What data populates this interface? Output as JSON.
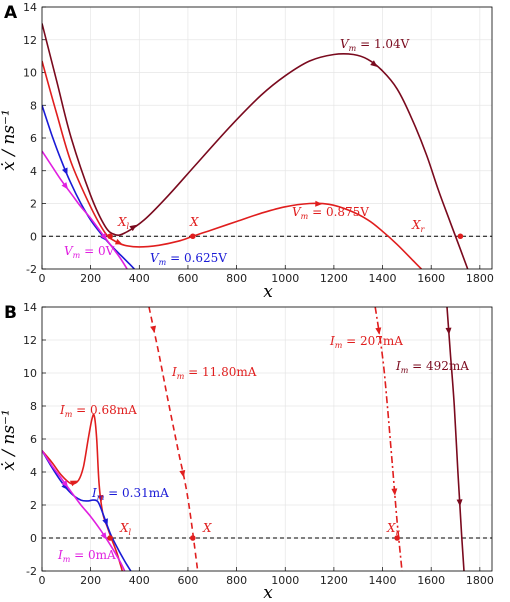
{
  "colors": {
    "dark_red": "#7a0a1e",
    "red": "#e01e1e",
    "blue": "#1a1ad6",
    "magenta": "#e020e0",
    "axis": "#000000"
  },
  "chart_data": [
    {
      "panel": "A",
      "type": "line",
      "xlabel": "x",
      "ylabel": "ẋ / ns⁻¹",
      "xlim": [
        0,
        1850
      ],
      "ylim": [
        -2,
        14
      ],
      "xticks": [
        "0",
        "200",
        "400",
        "600",
        "800",
        "1000",
        "1200",
        "1400",
        "1600",
        "1800"
      ],
      "yticks": [
        "-2",
        "0",
        "2",
        "4",
        "6",
        "8",
        "10",
        "12",
        "14"
      ],
      "grid": true,
      "hline_y": 0,
      "series": [
        {
          "name": "V_m = 1.04V",
          "label": "V_m = 1.04V",
          "color": "dark_red",
          "x": [
            0,
            60,
            120,
            200,
            260,
            300,
            340,
            420,
            520,
            640,
            780,
            900,
            1000,
            1100,
            1200,
            1280,
            1340,
            1400,
            1460,
            1520,
            1580,
            1630,
            1680,
            1720,
            1750
          ],
          "y": [
            13.0,
            9.5,
            6.0,
            2.5,
            0.6,
            0.1,
            0.2,
            1.0,
            2.5,
            4.5,
            6.8,
            8.6,
            9.8,
            10.7,
            11.1,
            11.1,
            10.8,
            10.1,
            9.0,
            7.2,
            5.0,
            2.8,
            0.8,
            -0.8,
            -2.0
          ]
        },
        {
          "name": "V_m = 0.875V",
          "label": "V_m = 0.875V",
          "color": "red",
          "x": [
            0,
            60,
            120,
            200,
            260,
            300,
            340,
            400,
            480,
            560,
            620,
            700,
            800,
            900,
            1000,
            1100,
            1180,
            1260,
            1340,
            1400,
            1460,
            1520,
            1560
          ],
          "y": [
            10.7,
            7.5,
            4.5,
            1.8,
            0.2,
            -0.3,
            -0.55,
            -0.65,
            -0.55,
            -0.3,
            0.0,
            0.4,
            0.9,
            1.4,
            1.8,
            2.0,
            1.95,
            1.6,
            1.0,
            0.3,
            -0.5,
            -1.4,
            -2.0
          ]
        },
        {
          "name": "V_m = 0.625V",
          "label": "V_m = 0.625V",
          "color": "blue",
          "x": [
            0,
            40,
            80,
            120,
            160,
            200,
            240,
            280,
            320,
            360,
            380
          ],
          "y": [
            8.0,
            6.2,
            4.6,
            3.2,
            2.0,
            1.0,
            0.2,
            -0.5,
            -1.1,
            -1.7,
            -2.0
          ]
        },
        {
          "name": "V_m = 0V",
          "label": "V_m = 0V",
          "color": "magenta",
          "x": [
            0,
            40,
            80,
            120,
            160,
            200,
            240,
            280,
            320,
            350
          ],
          "y": [
            5.2,
            4.3,
            3.4,
            2.6,
            1.8,
            1.1,
            0.3,
            -0.5,
            -1.3,
            -2.0
          ]
        }
      ],
      "points": [
        {
          "label": "X_l",
          "x": 280,
          "y": 0
        },
        {
          "label": "X",
          "x": 620,
          "y": 0
        },
        {
          "label": "X_r",
          "x": 1720,
          "y": 0
        }
      ]
    },
    {
      "panel": "B",
      "type": "line",
      "xlabel": "x",
      "ylabel": "ẋ / ns⁻¹",
      "xlim": [
        0,
        1850
      ],
      "ylim": [
        -2,
        14
      ],
      "xticks": [
        "0",
        "200",
        "400",
        "600",
        "800",
        "1000",
        "1200",
        "1400",
        "1600",
        "1800"
      ],
      "yticks": [
        "-2",
        "0",
        "2",
        "4",
        "6",
        "8",
        "10",
        "12",
        "14"
      ],
      "grid": true,
      "hline_y": 0,
      "series": [
        {
          "name": "I_m = 0.68mA",
          "label": "I_m = 0.68mA",
          "color": "red",
          "x": [
            0,
            40,
            80,
            120,
            150,
            170,
            190,
            205,
            215,
            225,
            235,
            250,
            270,
            290,
            310,
            330
          ],
          "y": [
            5.3,
            4.6,
            3.8,
            3.3,
            3.5,
            4.3,
            6.0,
            7.2,
            7.4,
            6.0,
            3.2,
            1.5,
            0.6,
            -0.2,
            -1.0,
            -2.0
          ]
        },
        {
          "name": "I_m = 0.31mA",
          "label": "I_m = 0.31mA",
          "color": "blue",
          "x": [
            0,
            40,
            80,
            120,
            160,
            190,
            210,
            230,
            250,
            280,
            310,
            340,
            365
          ],
          "y": [
            5.3,
            4.3,
            3.4,
            2.7,
            2.3,
            2.25,
            2.3,
            2.2,
            1.5,
            0.3,
            -0.6,
            -1.4,
            -2.0
          ]
        },
        {
          "name": "I_m = 0mA",
          "label": "I_m = 0mA",
          "color": "magenta",
          "x": [
            0,
            40,
            80,
            120,
            160,
            200,
            240,
            280,
            320,
            340
          ],
          "y": [
            5.3,
            4.4,
            3.6,
            2.8,
            2.0,
            1.3,
            0.5,
            -0.4,
            -1.4,
            -2.0
          ]
        },
        {
          "name": "I_m = 11.80mA",
          "label": "I_m = 11.80mA",
          "color": "red",
          "dash": "6,4",
          "x": [
            440,
            480,
            520,
            560,
            600,
            640
          ],
          "y": [
            14.0,
            11.2,
            8.2,
            5.3,
            2.4,
            -2.0
          ]
        },
        {
          "name": "I_m = 207mA",
          "label": "I_m = 207mA",
          "color": "red",
          "dash": "7,3,2,3",
          "x": [
            1370,
            1400,
            1420,
            1440,
            1460,
            1480
          ],
          "y": [
            14.0,
            11.0,
            8.0,
            4.5,
            1.0,
            -2.0
          ]
        },
        {
          "name": "I_m = 492mA",
          "label": "I_m = 492mA",
          "color": "dark_red",
          "x": [
            1665,
            1680,
            1695,
            1710,
            1725,
            1735
          ],
          "y": [
            14.0,
            11.0,
            8.0,
            4.0,
            0.2,
            -2.0
          ]
        }
      ],
      "points": [
        {
          "label": "X_l",
          "x": 280,
          "y": 0
        },
        {
          "label": "X",
          "x": 620,
          "y": 0
        },
        {
          "label": "X_r",
          "x": 1460,
          "y": 0
        }
      ]
    }
  ],
  "panelA": {
    "letter": "A",
    "xlabel": "x",
    "ylabel": "ẋ / ns⁻¹",
    "ann_vm104": "V",
    "ann_vm104_sub": "m",
    "ann_vm104_val": " = 1.04V",
    "ann_vm0875": "V",
    "ann_vm0875_sub": "m",
    "ann_vm0875_val": " = 0.875V",
    "ann_vm0625": "V",
    "ann_vm0625_sub": "m",
    "ann_vm0625_val": " = 0.625V",
    "ann_vm0": "V",
    "ann_vm0_sub": "m",
    "ann_vm0_val": " = 0V",
    "pt_xl": "X",
    "pt_xl_sub": "l",
    "pt_x": "X",
    "pt_xr": "X",
    "pt_xr_sub": "r"
  },
  "panelB": {
    "letter": "B",
    "xlabel": "x",
    "ylabel": "ẋ / ns⁻¹",
    "ann_im068": "I",
    "ann_im068_sub": "m",
    "ann_im068_val": " = 0.68mA",
    "ann_im031": "I",
    "ann_im031_sub": "m",
    "ann_im031_val": " = 0.31mA",
    "ann_im0": "I",
    "ann_im0_sub": "m",
    "ann_im0_val": " = 0mA",
    "ann_im1180": "I",
    "ann_im1180_sub": "m",
    "ann_im1180_val": " = 11.80mA",
    "ann_im207": "I",
    "ann_im207_sub": "m",
    "ann_im207_val": " = 207mA",
    "ann_im492": "I",
    "ann_im492_sub": "m",
    "ann_im492_val": " = 492mA",
    "pt_xl": "X",
    "pt_xl_sub": "l",
    "pt_x": "X",
    "pt_xr": "X",
    "pt_xr_sub": "r"
  }
}
